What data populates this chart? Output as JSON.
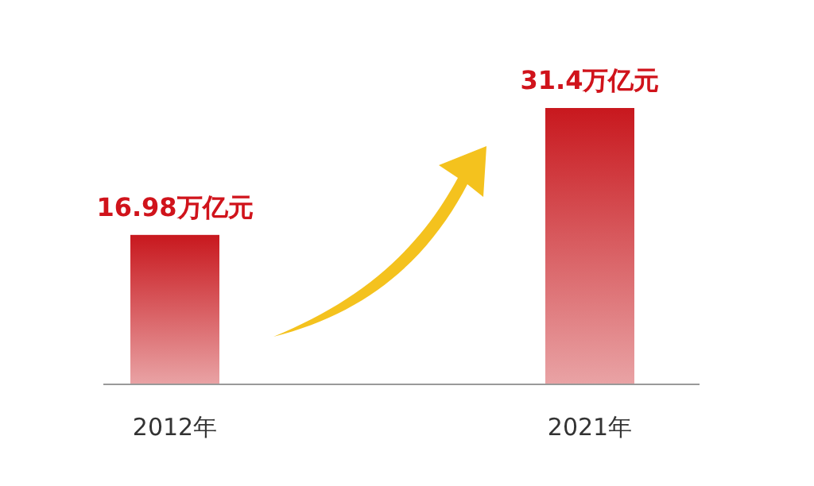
{
  "chart_data": {
    "type": "bar",
    "categories": [
      "2012年",
      "2021年"
    ],
    "values": [
      16.98,
      31.4
    ],
    "value_labels": [
      "16.98万亿元",
      "31.4万亿元"
    ],
    "color": "#c8181e"
  }
}
